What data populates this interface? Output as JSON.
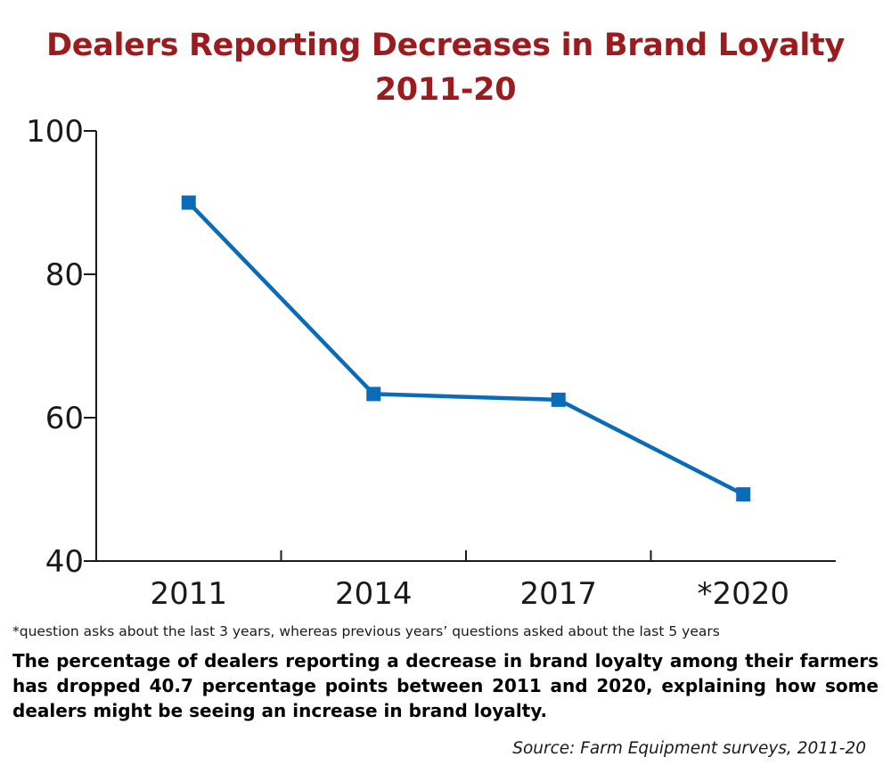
{
  "chart_data": {
    "type": "line",
    "title": [
      "Dealers Reporting Decreases in Brand Loyalty",
      "2011-20"
    ],
    "categories": [
      "2011",
      "2014",
      "2017",
      "*2020"
    ],
    "series": [
      {
        "values": [
          90.0,
          63.3,
          62.5,
          49.3
        ]
      }
    ],
    "yticks": [
      "100",
      "80",
      "60",
      "40"
    ],
    "ylim": [
      40,
      100
    ],
    "xlabel": "",
    "ylabel": "",
    "grid": false,
    "marker": "square",
    "line_color": "#0a6cb8",
    "title_color": "#9b1b1f"
  },
  "footnote": "*question asks about the last 3 years, whereas previous years’ questions asked about the last 5 years",
  "caption": "The percentage of dealers reporting a decrease in brand loyalty among their farmers has dropped 40.7 percentage points between 2011 and 2020, explaining how some dealers might be seeing an increase in brand loyalty.",
  "source": "Source: Farm Equipment surveys, 2011-20"
}
